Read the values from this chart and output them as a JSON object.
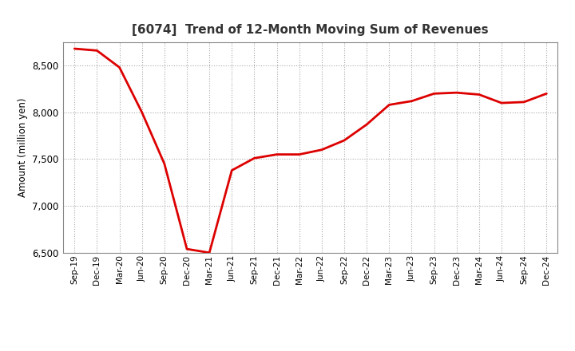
{
  "title": "[6074]  Trend of 12-Month Moving Sum of Revenues",
  "ylabel": "Amount (million yen)",
  "line_color": "#dd0000",
  "line_width": 2.0,
  "background_color": "#ffffff",
  "plot_bg_color": "#ffffff",
  "grid_color": "#aaaaaa",
  "grid_style": "dotted",
  "ylim": [
    6500,
    8750
  ],
  "yticks": [
    6500,
    7000,
    7500,
    8000,
    8500
  ],
  "x_labels": [
    "Sep-19",
    "Dec-19",
    "Mar-20",
    "Jun-20",
    "Sep-20",
    "Dec-20",
    "Mar-21",
    "Jun-21",
    "Sep-21",
    "Dec-21",
    "Mar-22",
    "Jun-22",
    "Sep-22",
    "Dec-22",
    "Mar-23",
    "Jun-23",
    "Sep-23",
    "Dec-23",
    "Mar-24",
    "Jun-24",
    "Sep-24",
    "Dec-24"
  ],
  "y_values": [
    8680,
    8660,
    8480,
    8000,
    7450,
    6540,
    6500,
    7380,
    7510,
    7550,
    7550,
    7600,
    7700,
    7870,
    8080,
    8120,
    8200,
    8210,
    8190,
    8100,
    8110,
    8200
  ]
}
